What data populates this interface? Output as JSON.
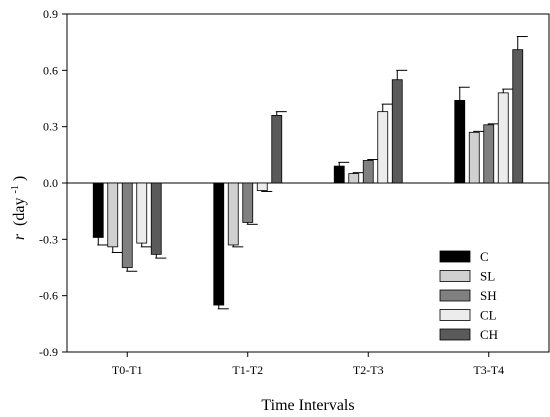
{
  "chart_data": {
    "type": "bar",
    "xlabel": "Time Intervals",
    "ylabel": {
      "main": "r",
      "unit": "(day",
      "exp": "-1",
      "close": ")"
    },
    "ylim": [
      -0.9,
      0.9
    ],
    "yticks": [
      "-0.9",
      "-0.6",
      "-0.3",
      "0.0",
      "0.3",
      "0.6",
      "0.9"
    ],
    "ytick_values": [
      -0.9,
      -0.6,
      -0.3,
      0.0,
      0.3,
      0.6,
      0.9
    ],
    "categories": [
      "T0-T1",
      "T1-T2",
      "T2-T3",
      "T3-T4"
    ],
    "legend_position": "bottom-right",
    "grid": false,
    "series": [
      {
        "name": "C",
        "color": "#000000",
        "values": [
          -0.29,
          -0.65,
          0.09,
          0.44
        ],
        "errors": [
          0.04,
          0.02,
          0.02,
          0.07
        ]
      },
      {
        "name": "SL",
        "color": "#d0d0d0",
        "values": [
          -0.34,
          -0.33,
          0.05,
          0.27
        ],
        "errors": [
          0.03,
          0.01,
          0.005,
          0.005
        ]
      },
      {
        "name": "SH",
        "color": "#808080",
        "values": [
          -0.45,
          -0.21,
          0.12,
          0.31
        ],
        "errors": [
          0.02,
          0.01,
          0.005,
          0.005
        ]
      },
      {
        "name": "CL",
        "color": "#ececec",
        "values": [
          -0.32,
          -0.04,
          0.38,
          0.48
        ],
        "errors": [
          0.02,
          0.005,
          0.04,
          0.02
        ]
      },
      {
        "name": "CH",
        "color": "#5a5a5a",
        "values": [
          -0.38,
          0.36,
          0.55,
          0.71
        ],
        "errors": [
          0.02,
          0.02,
          0.05,
          0.07
        ]
      }
    ]
  }
}
